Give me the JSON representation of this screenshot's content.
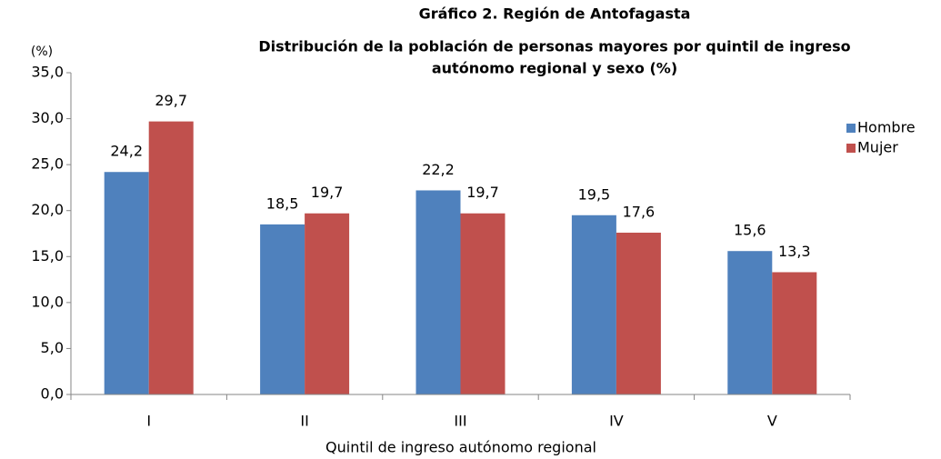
{
  "chart_data": {
    "type": "bar",
    "title": "Gráfico 2. Región de Antofagasta",
    "subtitle": [
      "Distribución de la población de personas mayores por quintil  de ingreso",
      "autónomo regional y sexo (%)"
    ],
    "y_label": "(%)",
    "x_label": "Quintil de ingreso autónomo regional",
    "categories": [
      "I",
      "II",
      "III",
      "IV",
      "V"
    ],
    "series": [
      {
        "name": "Hombre",
        "color": "#4f81bd",
        "values": [
          24.2,
          18.5,
          22.2,
          19.5,
          15.6
        ],
        "value_labels": [
          "24,2",
          "18,5",
          "22,2",
          "19,5",
          "15,6"
        ]
      },
      {
        "name": "Mujer",
        "color": "#c0504d",
        "values": [
          29.7,
          19.7,
          19.7,
          17.6,
          13.3
        ],
        "value_labels": [
          "29,7",
          "19,7",
          "19,7",
          "17,6",
          "13,3"
        ]
      }
    ],
    "ylim": [
      0,
      35
    ],
    "yticks": [
      {
        "value": 0,
        "label": "0,0"
      },
      {
        "value": 5,
        "label": "5,0"
      },
      {
        "value": 10,
        "label": "10,0"
      },
      {
        "value": 15,
        "label": "15,0"
      },
      {
        "value": 20,
        "label": "20,0"
      },
      {
        "value": 25,
        "label": "25,0"
      },
      {
        "value": 30,
        "label": "30,0"
      },
      {
        "value": 35,
        "label": "35,0"
      }
    ],
    "grid": false,
    "legend": "right"
  }
}
